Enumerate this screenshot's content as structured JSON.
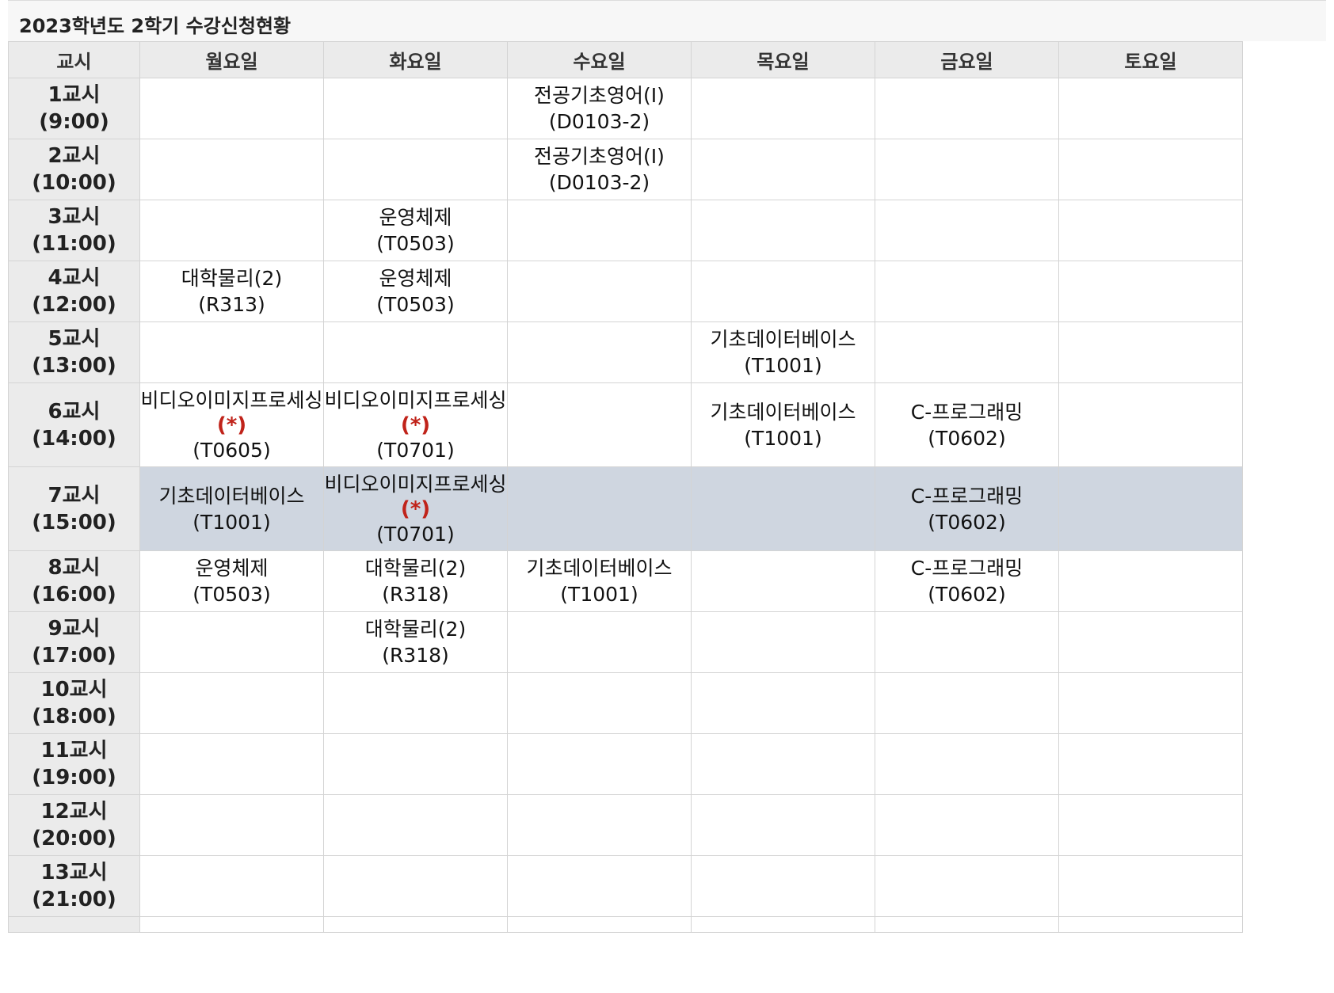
{
  "title": "2023학년도 2학기 수강신청현황",
  "headers": [
    "교시",
    "월요일",
    "화요일",
    "수요일",
    "목요일",
    "금요일",
    "토요일"
  ],
  "conflict_mark": "(*)",
  "colors": {
    "selected_row": "#cfd6e0",
    "mark": "#c0231a",
    "header_bg": "#ebebeb"
  },
  "periods": [
    {
      "label": "1교시",
      "time": "(9:00)",
      "cells": [
        null,
        null,
        {
          "name": "전공기초영어(Ⅰ)",
          "room": "(D0103-2)"
        },
        null,
        null,
        null
      ]
    },
    {
      "label": "2교시",
      "time": "(10:00)",
      "cells": [
        null,
        null,
        {
          "name": "전공기초영어(Ⅰ)",
          "room": "(D0103-2)"
        },
        null,
        null,
        null
      ]
    },
    {
      "label": "3교시",
      "time": "(11:00)",
      "cells": [
        null,
        {
          "name": "운영체제",
          "room": "(T0503)"
        },
        null,
        null,
        null,
        null
      ]
    },
    {
      "label": "4교시",
      "time": "(12:00)",
      "cells": [
        {
          "name": "대학물리(2)",
          "room": "(R313)"
        },
        {
          "name": "운영체제",
          "room": "(T0503)"
        },
        null,
        null,
        null,
        null
      ]
    },
    {
      "label": "5교시",
      "time": "(13:00)",
      "cells": [
        null,
        null,
        null,
        {
          "name": "기초데이터베이스",
          "room": "(T1001)"
        },
        null,
        null
      ]
    },
    {
      "label": "6교시",
      "time": "(14:00)",
      "cells": [
        {
          "name": "비디오이미지프로세싱",
          "mark": true,
          "room": "(T0605)"
        },
        {
          "name": "비디오이미지프로세싱",
          "mark": true,
          "room": "(T0701)"
        },
        null,
        {
          "name": "기초데이터베이스",
          "room": "(T1001)"
        },
        {
          "name": "C-프로그래밍",
          "room": "(T0602)"
        },
        null
      ]
    },
    {
      "label": "7교시",
      "time": "(15:00)",
      "selected": true,
      "cells": [
        {
          "name": "기초데이터베이스",
          "room": "(T1001)"
        },
        {
          "name": "비디오이미지프로세싱",
          "mark": true,
          "room": "(T0701)"
        },
        null,
        null,
        {
          "name": "C-프로그래밍",
          "room": "(T0602)"
        },
        null
      ]
    },
    {
      "label": "8교시",
      "time": "(16:00)",
      "cells": [
        {
          "name": "운영체제",
          "room": "(T0503)"
        },
        {
          "name": "대학물리(2)",
          "room": "(R318)"
        },
        {
          "name": "기초데이터베이스",
          "room": "(T1001)"
        },
        null,
        {
          "name": "C-프로그래밍",
          "room": "(T0602)"
        },
        null
      ]
    },
    {
      "label": "9교시",
      "time": "(17:00)",
      "cells": [
        null,
        {
          "name": "대학물리(2)",
          "room": "(R318)"
        },
        null,
        null,
        null,
        null
      ]
    },
    {
      "label": "10교시",
      "time": "(18:00)",
      "cells": [
        null,
        null,
        null,
        null,
        null,
        null
      ]
    },
    {
      "label": "11교시",
      "time": "(19:00)",
      "cells": [
        null,
        null,
        null,
        null,
        null,
        null
      ]
    },
    {
      "label": "12교시",
      "time": "(20:00)",
      "cells": [
        null,
        null,
        null,
        null,
        null,
        null
      ]
    },
    {
      "label": "13교시",
      "time": "(21:00)",
      "cells": [
        null,
        null,
        null,
        null,
        null,
        null
      ]
    },
    {
      "label": "",
      "time": "",
      "cells": [
        null,
        null,
        null,
        null,
        null,
        null
      ]
    }
  ]
}
